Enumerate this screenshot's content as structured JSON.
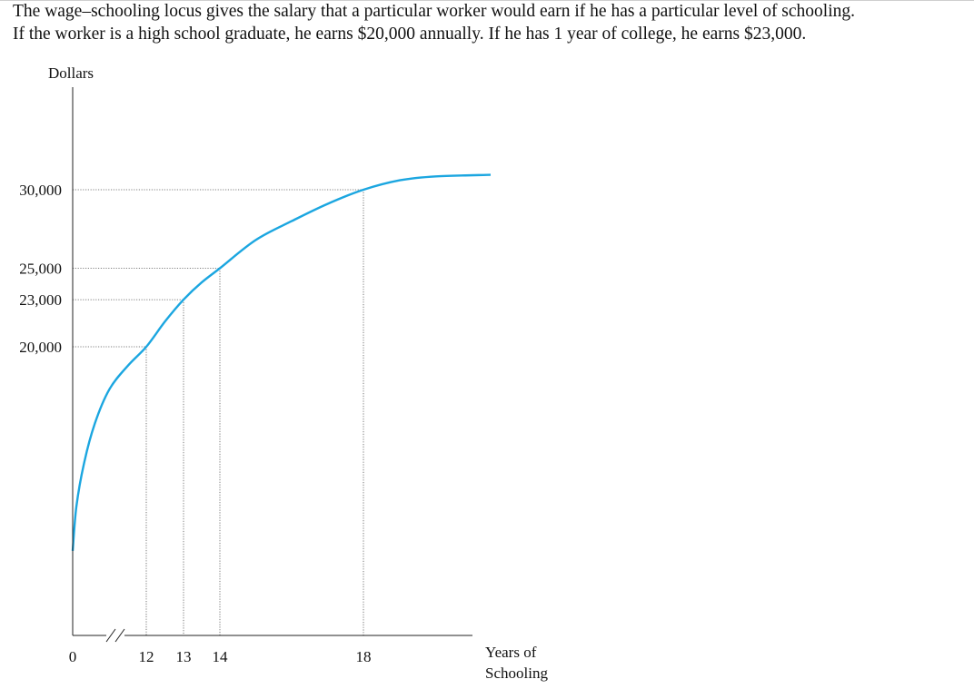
{
  "caption": {
    "line1": "The wage–schooling locus gives the salary that a particular worker would earn if he has a particular level of schooling.",
    "line2": "If the worker is a high school graduate, he earns $20,000 annually. If he has 1 year of college, he earns $23,000."
  },
  "colors": {
    "curve": "#1ba6e0",
    "axis": "#222222",
    "guide": "#555555"
  },
  "chart_data": {
    "type": "line",
    "ylabel": "Dollars",
    "xlabel": [
      "Years of",
      "Schooling"
    ],
    "x_origin_label": "0",
    "axis_break": true,
    "x_ticks": [
      12,
      13,
      14,
      18
    ],
    "y_ticks": [
      20000,
      23000,
      25000,
      30000
    ],
    "y_tick_labels": [
      "20,000",
      "23,000",
      "25,000",
      "30,000"
    ],
    "guide_points": [
      {
        "x": 12,
        "y": 20000
      },
      {
        "x": 13,
        "y": 23000
      },
      {
        "x": 14,
        "y": 25000
      },
      {
        "x": 18,
        "y": 30000
      }
    ],
    "series": [
      {
        "x": [
          10.0,
          10.1,
          10.3,
          10.6,
          11.0,
          11.5,
          12.0,
          12.5,
          13.0,
          13.5,
          14.0,
          15.0,
          16.0,
          17.0,
          18.0,
          19.0,
          20.0,
          21.5
        ],
        "y": [
          7000,
          9800,
          12500,
          15100,
          17300,
          18800,
          20000,
          21600,
          23000,
          24100,
          25000,
          26800,
          28000,
          29100,
          30000,
          30600,
          30850,
          30950
        ]
      }
    ]
  }
}
